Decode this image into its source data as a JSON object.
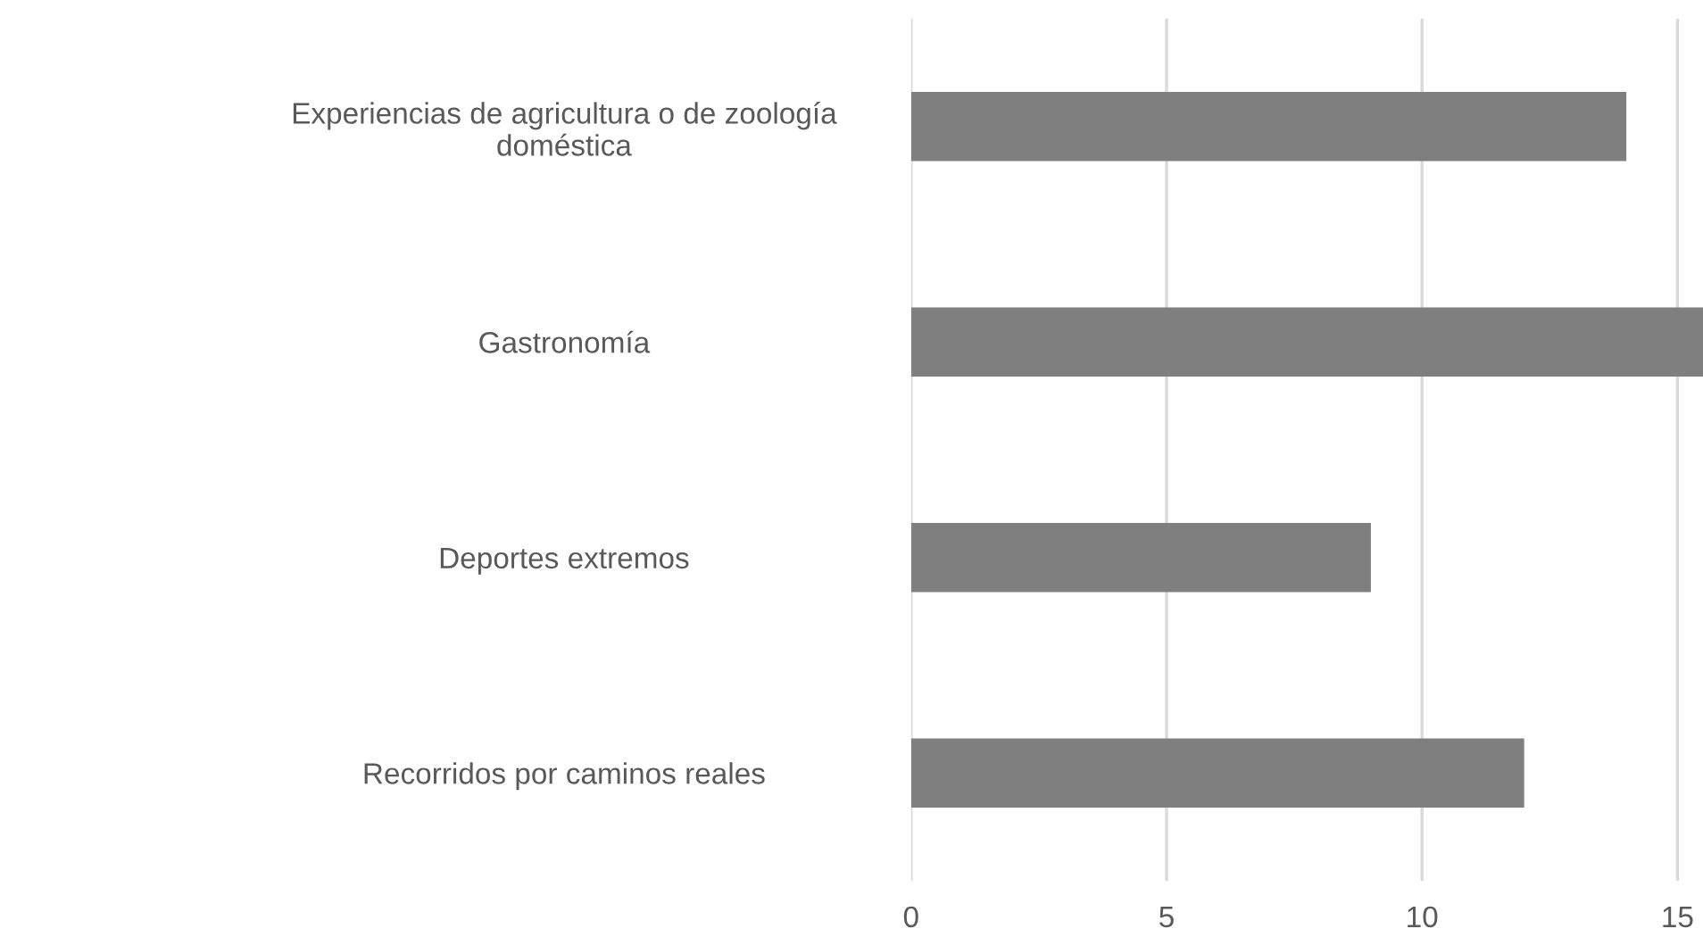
{
  "chart_data": {
    "type": "bar",
    "orientation": "horizontal",
    "categories": [
      "Experiencias de agricultura o de zoología\ndoméstica",
      "Gastronomía",
      "Deportes extremos",
      "Recorridos por caminos reales"
    ],
    "values": [
      14,
      15.5,
      9,
      12
    ],
    "color": "#7f7f7f",
    "xlim": [
      0,
      15.5
    ],
    "xticks": [
      0,
      5,
      10,
      15
    ],
    "grid": "x",
    "legend": false
  }
}
